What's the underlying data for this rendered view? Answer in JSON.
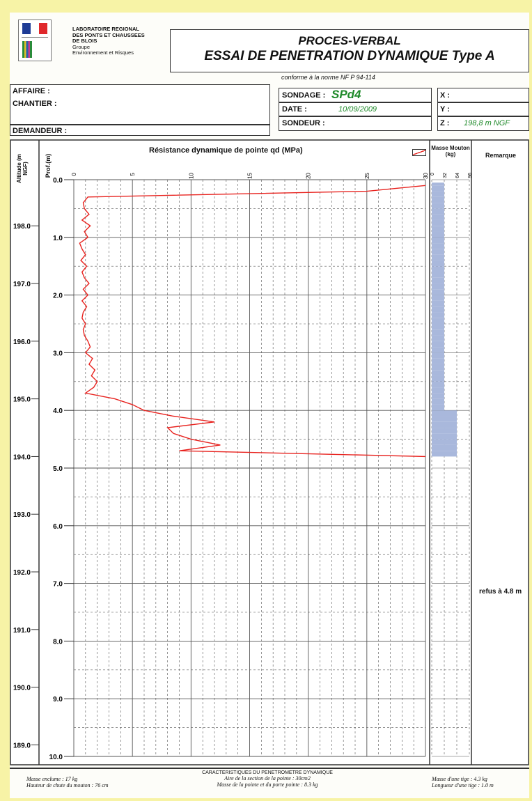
{
  "header": {
    "lab_lines": [
      "LABORATOIRE REGIONAL",
      "DES PONTS ET CHAUSSEES",
      "DE BLOIS",
      "Groupe",
      "Environnement et Risques"
    ],
    "title_line1": "PROCES-VERBAL",
    "title_line2": "ESSAI DE PENETRATION DYNAMIQUE Type A",
    "norme": "conforme à la norme NF P 94-114"
  },
  "info": {
    "affaire_label": "AFFAIRE :",
    "chantier_label": "CHANTIER :",
    "demandeur_label": "DEMANDEUR :",
    "sondage_label": "SONDAGE :",
    "sondage_value": "SPd4",
    "date_label": "DATE :",
    "date_value": "10/09/2009",
    "sondeur_label": "SONDEUR :",
    "x_label": "X :",
    "y_label": "Y :",
    "z_label": "Z :",
    "z_value": "198,8 m  NGF"
  },
  "columns": {
    "altitude": "Altitude (m NGF)",
    "prof": "Prof.(m)",
    "masse": "Masse Mouton (kg)",
    "remarque": "Remarque"
  },
  "remark_text": "refus à 4.8 m",
  "footer": {
    "center_title": "CARACTERISTIQUES DU PENETROMETRE DYNAMIQUE",
    "center_line1": "Aire de la section de la pointe : 30cm2",
    "center_line2": "Masse de la pointe et du porte pointe : 8.3 kg",
    "left_line1": "Masse enclume : 17 kg",
    "left_line2": "Hauteur de chute du mouton : 76 cm",
    "right_line1": "Masse d'une tige : 4.3 kg",
    "right_line2": "Longueur d'une tige : 1.0 m"
  },
  "colors": {
    "curve": "#e8231f",
    "mass_fill": "#a9b8dc",
    "value_green": "#1f8a2a"
  },
  "chart_data": {
    "type": "line",
    "title": "Résistance dynamique de pointe  qd (MPa)",
    "xlabel": "qd (MPa)",
    "ylabel": "Prof.(m)",
    "xlim": [
      0,
      30
    ],
    "ylim": [
      0,
      10
    ],
    "x_ticks": [
      "0",
      "5",
      "10",
      "15",
      "20",
      "25",
      "30"
    ],
    "y_ticks": [
      "0.0",
      "1.0",
      "2.0",
      "3.0",
      "4.0",
      "5.0",
      "6.0",
      "7.0",
      "8.0",
      "9.0",
      "10.0"
    ],
    "altitude_ticks": [
      "198.0",
      "197.0",
      "196.0",
      "195.0",
      "194.0",
      "193.0",
      "192.0",
      "191.0",
      "190.0",
      "189.0"
    ],
    "series": [
      {
        "depth": [
          0.1,
          0.2,
          0.3,
          0.4,
          0.5,
          0.6,
          0.7,
          0.8,
          0.9,
          1.0,
          1.1,
          1.2,
          1.3,
          1.4,
          1.5,
          1.6,
          1.7,
          1.8,
          1.9,
          2.0,
          2.1,
          2.2,
          2.3,
          2.4,
          2.5,
          2.6,
          2.7,
          2.8,
          2.9,
          3.0,
          3.1,
          3.2,
          3.3,
          3.4,
          3.5,
          3.6,
          3.7,
          3.8,
          3.9,
          4.0,
          4.1,
          4.2,
          4.3,
          4.4,
          4.5,
          4.6,
          4.7,
          4.8
        ],
        "qd": [
          30,
          25,
          1.2,
          0.8,
          0.9,
          1.3,
          0.7,
          1.4,
          0.9,
          1.2,
          0.5,
          0.7,
          1.0,
          0.6,
          1.1,
          0.7,
          0.9,
          1.3,
          0.8,
          1.2,
          0.7,
          1.1,
          0.8,
          0.7,
          1.0,
          0.8,
          0.9,
          1.2,
          1.4,
          1.0,
          1.6,
          1.3,
          1.8,
          1.5,
          2.0,
          1.7,
          1.0,
          3.5,
          5.0,
          6.0,
          8.5,
          12.0,
          8.0,
          8.5,
          10.0,
          12.5,
          9.0,
          30
        ]
      }
    ],
    "mass_values": [
      32,
      32,
      32,
      32,
      32,
      32,
      32,
      32,
      32,
      32,
      32,
      32,
      32,
      32,
      32,
      32,
      32,
      32,
      32,
      32,
      32,
      32,
      32,
      32,
      32,
      32,
      32,
      32,
      32,
      32,
      32,
      32,
      32,
      32,
      32,
      32,
      32,
      32,
      32,
      32,
      64,
      64,
      64,
      64,
      64,
      64,
      64,
      64
    ],
    "mass_ticks": [
      "0",
      "32",
      "64",
      "96"
    ],
    "grid": true
  }
}
